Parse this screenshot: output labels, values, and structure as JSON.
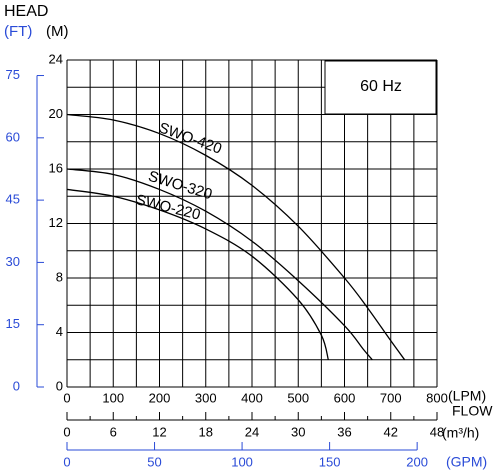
{
  "chart_data": {
    "type": "line",
    "y_label": "HEAD",
    "y_unit": "(M)",
    "y2_unit": "(FT)",
    "annotation": "60 Hz",
    "x_label": "FLOW",
    "x_unit": "(LPM)",
    "x2_unit": "(m³/h)",
    "x3_unit": "(GPM)",
    "xlim": [
      0,
      800
    ],
    "xticks": [
      0,
      100,
      200,
      300,
      400,
      500,
      600,
      700,
      800
    ],
    "x2lim": [
      0,
      48
    ],
    "x2ticks": [
      0,
      6,
      12,
      18,
      24,
      30,
      36,
      42,
      48
    ],
    "x3lim": [
      0,
      211.34
    ],
    "x3ticks": [
      0,
      50,
      100,
      150,
      200
    ],
    "ylim": [
      0,
      24
    ],
    "yticks": [
      0,
      4,
      8,
      12,
      16,
      20,
      24
    ],
    "y2lim": [
      0,
      78.74
    ],
    "y2ticks": [
      0,
      15,
      30,
      45,
      60,
      75
    ],
    "grid": true,
    "secondary_color": "#2a4bd7",
    "series": [
      {
        "name": "SWO-420",
        "color": "#000000",
        "x": [
          0,
          100,
          200,
          300,
          400,
          500,
          600,
          650,
          700,
          730
        ],
        "values": [
          20,
          19.6,
          18.6,
          17,
          14.8,
          11.8,
          8,
          5.8,
          3.4,
          2
        ]
      },
      {
        "name": "SWO-320",
        "color": "#000000",
        "x": [
          0,
          100,
          200,
          300,
          400,
          500,
          600,
          640,
          660
        ],
        "values": [
          16,
          15.6,
          14.5,
          12.9,
          10.7,
          7.8,
          4.5,
          2.8,
          2
        ]
      },
      {
        "name": "SWO-220",
        "color": "#000000",
        "x": [
          0,
          100,
          200,
          300,
          400,
          500,
          550,
          565
        ],
        "values": [
          14.5,
          14,
          13,
          11.6,
          9.6,
          6.4,
          3.8,
          2
        ]
      }
    ]
  }
}
